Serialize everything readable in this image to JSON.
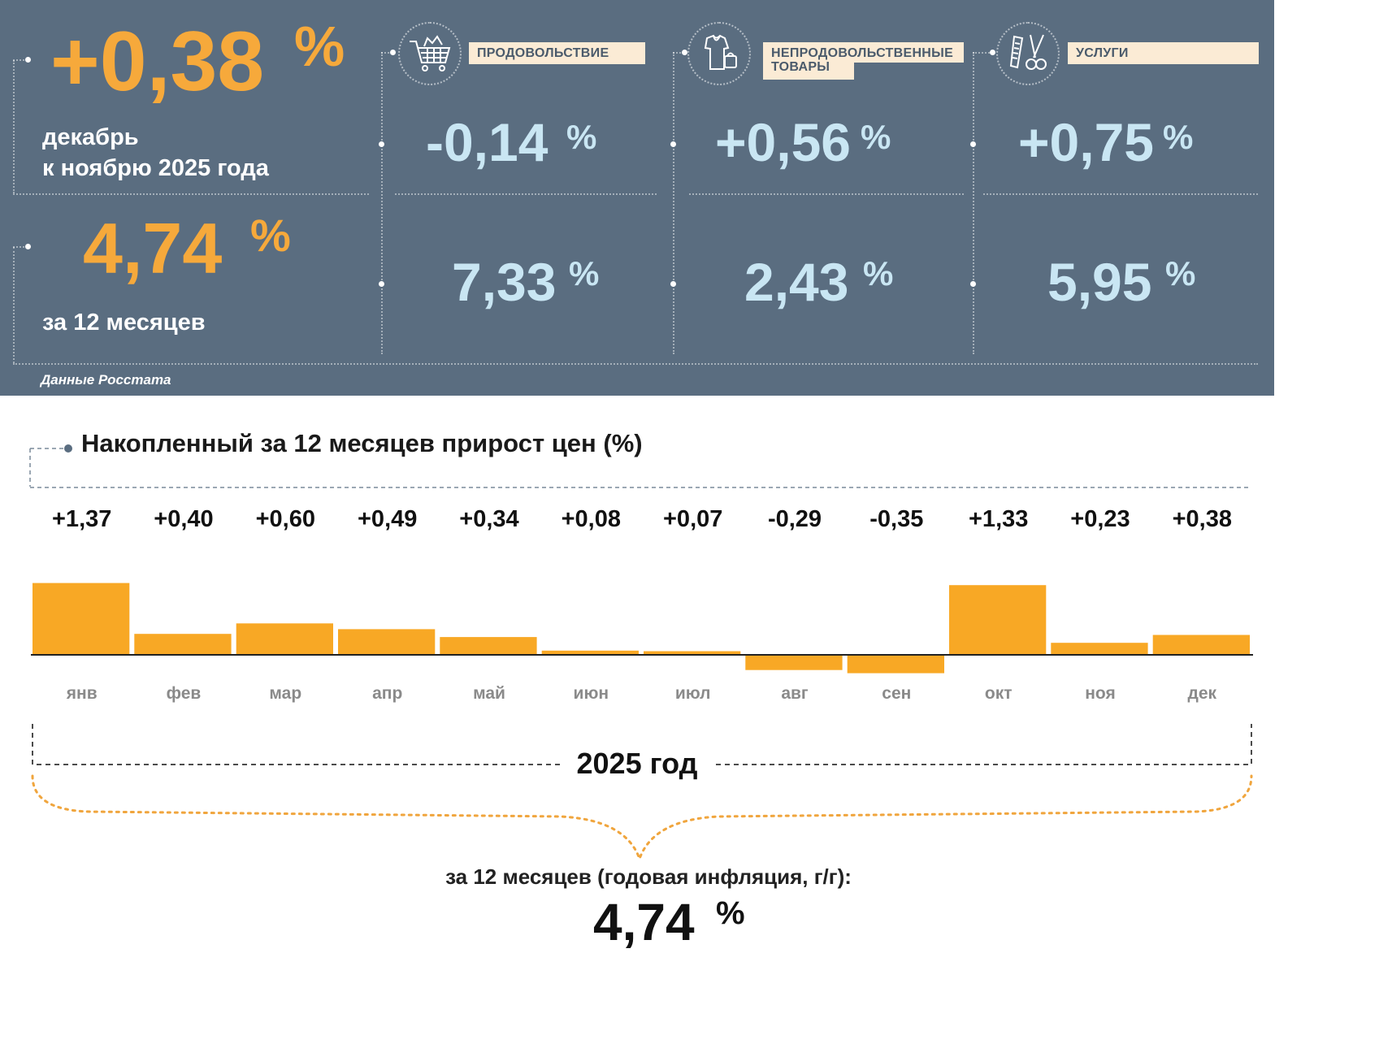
{
  "header": {
    "monthly": {
      "value": "+0,38",
      "unit": "%",
      "line1": "декабрь",
      "line2": "к ноябрю 2025 года"
    },
    "annual": {
      "value": "4,74",
      "unit": "%",
      "label": "за 12 месяцев"
    },
    "categories": [
      {
        "label": "ПРОДОВОЛЬСТВИЕ",
        "icon": "shopping-cart-icon",
        "monthly": "-0,14",
        "annual": "7,33",
        "unit": "%"
      },
      {
        "label": "НЕПРОДОВОЛЬСТВЕННЫЕ ТОВАРЫ",
        "label_line1": "НЕПРОДОВОЛЬСТВЕННЫЕ",
        "label_line2": "ТОВАРЫ",
        "icon": "clothing-bag-icon",
        "monthly": "+0,56",
        "annual": "2,43",
        "unit": "%"
      },
      {
        "label": "УСЛУГИ",
        "icon": "scissors-comb-icon",
        "monthly": "+0,75",
        "annual": "5,95",
        "unit": "%"
      }
    ],
    "source": "Данные Росстата"
  },
  "chart_data": {
    "type": "bar",
    "title": "Накопленный за 12 месяцев прирост цен (%)",
    "categories": [
      "янв",
      "фев",
      "мар",
      "апр",
      "май",
      "июн",
      "июл",
      "авг",
      "сен",
      "окт",
      "ноя",
      "дек"
    ],
    "values": [
      1.37,
      0.4,
      0.6,
      0.49,
      0.34,
      0.08,
      0.07,
      -0.29,
      -0.35,
      1.33,
      0.23,
      0.38
    ],
    "value_labels": [
      "+1,37",
      "+0,40",
      "+0,60",
      "+0,49",
      "+0,34",
      "+0,08",
      "+0,07",
      "-0,29",
      "-0,35",
      "+1,33",
      "+0,23",
      "+0,38"
    ],
    "bar_color": "#f8a825",
    "year_label": "2025 год"
  },
  "summary": {
    "label": "за 12 месяцев (годовая инфляция, г/г):",
    "value": "4,74",
    "unit": "%"
  },
  "colors": {
    "header_bg": "#5a6d80",
    "accent_orange": "#f6a93b",
    "accent_blue": "#c9e6f3",
    "label_bg": "#fbebd5"
  }
}
